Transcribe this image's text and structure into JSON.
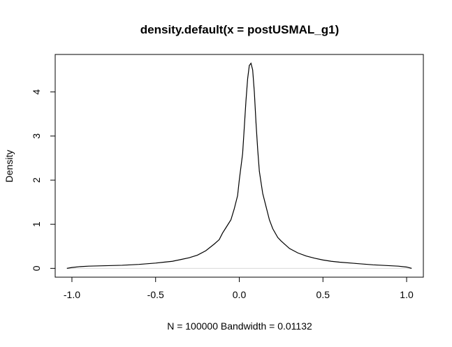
{
  "chart_data": {
    "type": "line",
    "title": "density.default(x = postUSMAL_g1)",
    "xlabel": "N = 100000   Bandwidth = 0.01132",
    "ylabel": "Density",
    "xlim": [
      -1.1,
      1.1
    ],
    "ylim": [
      -0.2,
      4.85
    ],
    "x_ticks": [
      -1.0,
      -0.5,
      0.0,
      0.5,
      1.0
    ],
    "x_tick_labels": [
      "-1.0",
      "-0.5",
      "0.0",
      "0.5",
      "1.0"
    ],
    "y_ticks": [
      0,
      1,
      2,
      3,
      4
    ],
    "y_tick_labels": [
      "0",
      "1",
      "2",
      "3",
      "4"
    ],
    "grid": false,
    "legend": "none",
    "line_color": "#000000",
    "baseline_color": "#d9d9d9",
    "series": [
      {
        "x": [
          -1.03,
          -1.0,
          -0.95,
          -0.9,
          -0.8,
          -0.7,
          -0.6,
          -0.5,
          -0.45,
          -0.4,
          -0.35,
          -0.3,
          -0.25,
          -0.2,
          -0.15,
          -0.12,
          -0.1,
          -0.08,
          -0.05,
          -0.03,
          -0.01,
          0.0,
          0.02,
          0.03,
          0.04,
          0.05,
          0.06,
          0.07,
          0.08,
          0.09,
          0.1,
          0.11,
          0.12,
          0.13,
          0.14,
          0.16,
          0.18,
          0.2,
          0.23,
          0.25,
          0.3,
          0.35,
          0.4,
          0.45,
          0.5,
          0.55,
          0.6,
          0.7,
          0.8,
          0.9,
          0.95,
          1.0,
          1.03
        ],
        "y": [
          0.0,
          0.02,
          0.04,
          0.05,
          0.06,
          0.07,
          0.09,
          0.12,
          0.14,
          0.16,
          0.2,
          0.24,
          0.3,
          0.4,
          0.55,
          0.65,
          0.8,
          0.92,
          1.1,
          1.35,
          1.65,
          2.0,
          2.6,
          3.2,
          3.8,
          4.3,
          4.6,
          4.65,
          4.5,
          4.0,
          3.3,
          2.7,
          2.2,
          1.95,
          1.7,
          1.4,
          1.1,
          0.9,
          0.7,
          0.62,
          0.45,
          0.35,
          0.28,
          0.23,
          0.19,
          0.16,
          0.14,
          0.11,
          0.08,
          0.06,
          0.05,
          0.03,
          0.0
        ]
      }
    ]
  }
}
